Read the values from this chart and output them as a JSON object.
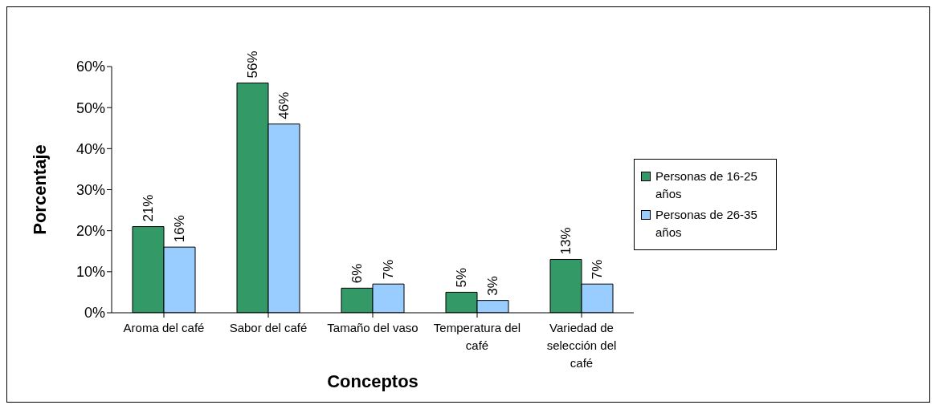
{
  "chart_data": {
    "type": "bar",
    "xlabel": "Conceptos",
    "ylabel": "Porcentaje",
    "categories": [
      "Aroma del café",
      "Sabor del café",
      "Tamaño del vaso",
      "Temperatura del café",
      "Variedad de selección del café"
    ],
    "series": [
      {
        "name": "Personas de 16-25 años",
        "color": "#339966",
        "values": [
          21,
          56,
          6,
          5,
          13
        ],
        "value_labels": [
          "21%",
          "56%",
          "6%",
          "5%",
          "13%"
        ]
      },
      {
        "name": "Personas de 26-35 años",
        "color": "#99ccff",
        "values": [
          16,
          46,
          7,
          3,
          7
        ],
        "value_labels": [
          "16%",
          "46%",
          "7%",
          "3%",
          "7%"
        ]
      }
    ],
    "ylim": [
      0,
      60
    ],
    "yticks": [
      {
        "value": 0,
        "label": "0%"
      },
      {
        "value": 10,
        "label": "10%"
      },
      {
        "value": 20,
        "label": "20%"
      },
      {
        "value": 30,
        "label": "30%"
      },
      {
        "value": 40,
        "label": "40%"
      },
      {
        "value": 50,
        "label": "50%"
      },
      {
        "value": 60,
        "label": "60%"
      }
    ],
    "legend": "right",
    "grid": false
  }
}
